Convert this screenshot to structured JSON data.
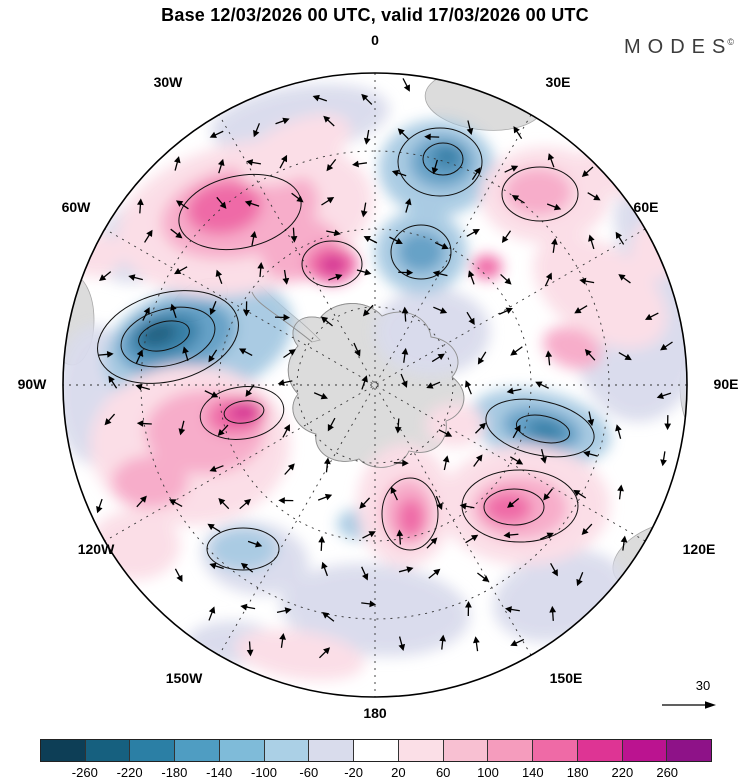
{
  "title": "Base 12/03/2026 00 UTC, valid 17/03/2026 00 UTC",
  "logo": {
    "text": "MODES",
    "mark": "©"
  },
  "map": {
    "meridian_labels": [
      "0",
      "30E",
      "60E",
      "90E",
      "120E",
      "150E",
      "180",
      "150W",
      "120W",
      "90W",
      "60W",
      "30W"
    ]
  },
  "reference_arrow": {
    "label": "30"
  },
  "colorbar": {
    "ticks": [
      "-260",
      "-220",
      "-180",
      "-140",
      "-100",
      "-60",
      "-20",
      "20",
      "60",
      "100",
      "140",
      "180",
      "220",
      "260"
    ],
    "colors": [
      "#0d3e56",
      "#16607f",
      "#2b7fa5",
      "#4f9dc2",
      "#7fbbd9",
      "#abd0e6",
      "#d9dcec",
      "#ffffff",
      "#fbdfe7",
      "#f8c0d2",
      "#f59cbd",
      "#ef6aa6",
      "#de3494",
      "#bb1390",
      "#8e1288"
    ],
    "anomaly_colors": {
      "lavender": "#d9dbec",
      "light_blue": "#a6c9e2",
      "mid_blue": "#5e9dc5",
      "deep_blue": "#2d7aa4",
      "darkest_blue": "#14597a",
      "light_pink": "#fbdde6",
      "mid_pink": "#f7a9c8",
      "deep_pink": "#ef64a3",
      "magenta": "#d2258f"
    }
  }
}
